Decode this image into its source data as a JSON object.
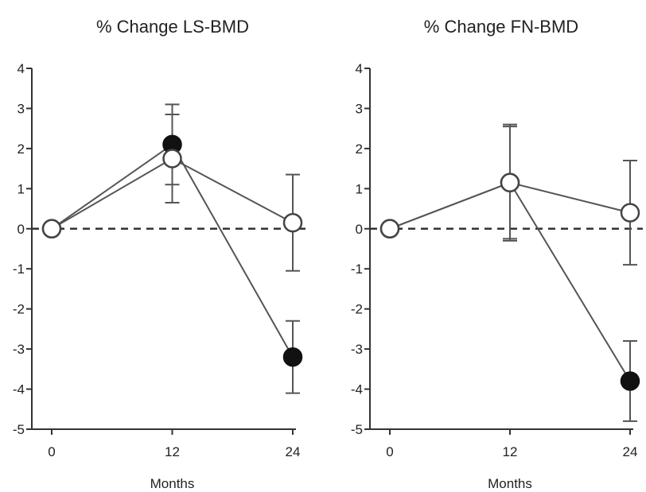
{
  "chart_data": [
    {
      "type": "line",
      "title": "% Change LS-BMD",
      "xlabel": "Months",
      "ylabel": "",
      "x": [
        0,
        12,
        24
      ],
      "x_tick_labels": [
        "0",
        "12",
        "24"
      ],
      "xlim": [
        0,
        24
      ],
      "ylim": [
        -5,
        4
      ],
      "y_ticks": [
        -5,
        -4,
        -3,
        -2,
        -1,
        0,
        1,
        2,
        3,
        4
      ],
      "y_tick_labels": [
        "-5",
        "-4",
        "-3",
        "-2",
        "-1",
        "0",
        "1",
        "2",
        "3",
        "4"
      ],
      "reference_line": {
        "y": 0,
        "style": "dashed"
      },
      "grid": false,
      "legend": "none",
      "series": [
        {
          "marker": "filled-circle",
          "values": [
            0,
            2.1,
            -3.2
          ],
          "errors": [
            0,
            1.0,
            0.9
          ],
          "color": "#111111"
        },
        {
          "marker": "open-circle",
          "values": [
            0,
            1.75,
            0.15
          ],
          "errors": [
            0,
            1.1,
            1.2
          ],
          "color": "#555555"
        }
      ]
    },
    {
      "type": "line",
      "title": "% Change FN-BMD",
      "xlabel": "Months",
      "ylabel": "",
      "x": [
        0,
        12,
        24
      ],
      "x_tick_labels": [
        "0",
        "12",
        "24"
      ],
      "xlim": [
        0,
        24
      ],
      "ylim": [
        -5,
        4
      ],
      "y_ticks": [
        -5,
        -4,
        -3,
        -2,
        -1,
        0,
        1,
        2,
        3,
        4
      ],
      "y_tick_labels": [
        "-5",
        "-4",
        "-3",
        "-2",
        "-1",
        "0",
        "1",
        "2",
        "3",
        "4"
      ],
      "reference_line": {
        "y": 0,
        "style": "dashed"
      },
      "grid": false,
      "legend": "none",
      "series": [
        {
          "marker": "filled-circle",
          "values": [
            0,
            1.15,
            -3.8
          ],
          "errors": [
            0,
            1.4,
            1.0
          ],
          "color": "#111111"
        },
        {
          "marker": "open-circle",
          "values": [
            0,
            1.15,
            0.4
          ],
          "errors": [
            0,
            1.45,
            1.3
          ],
          "color": "#555555"
        }
      ]
    }
  ]
}
